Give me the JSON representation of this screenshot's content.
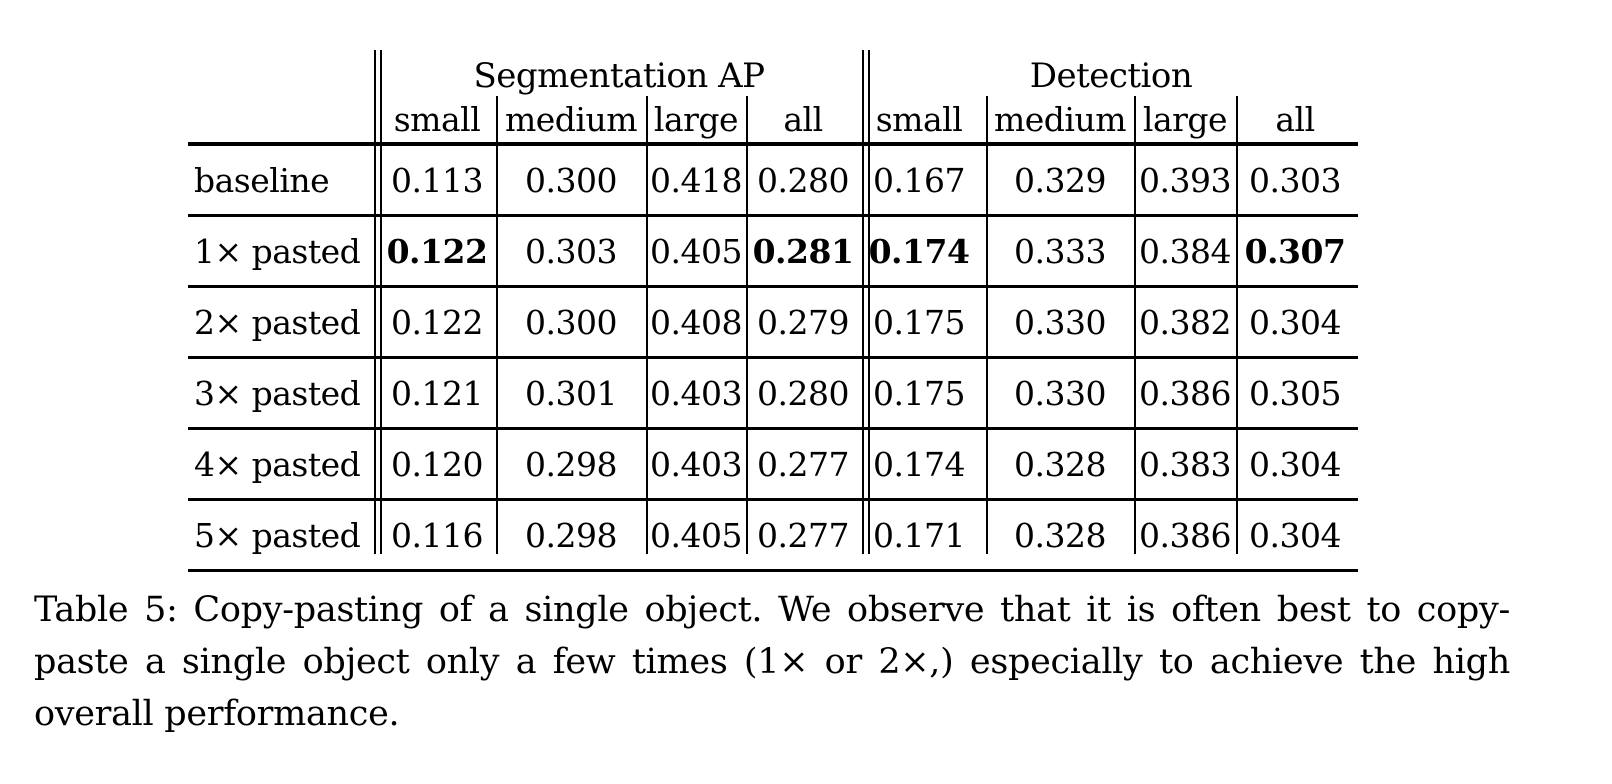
{
  "table": {
    "groups": [
      "Segmentation AP",
      "Detection"
    ],
    "subcolumns": [
      "small",
      "medium",
      "large",
      "all",
      "small",
      "medium",
      "large",
      "all"
    ],
    "rows": [
      {
        "label": "baseline",
        "values": [
          "0.113",
          "0.300",
          "0.418",
          "0.280",
          "0.167",
          "0.329",
          "0.393",
          "0.303"
        ],
        "bold": []
      },
      {
        "label": "1× pasted",
        "values": [
          "0.122",
          "0.303",
          "0.405",
          "0.281",
          "0.174",
          "0.333",
          "0.384",
          "0.307"
        ],
        "bold": [
          0,
          3,
          4,
          7
        ]
      },
      {
        "label": "2× pasted",
        "values": [
          "0.122",
          "0.300",
          "0.408",
          "0.279",
          "0.175",
          "0.330",
          "0.382",
          "0.304"
        ],
        "bold": []
      },
      {
        "label": "3× pasted",
        "values": [
          "0.121",
          "0.301",
          "0.403",
          "0.280",
          "0.175",
          "0.330",
          "0.386",
          "0.305"
        ],
        "bold": []
      },
      {
        "label": "4× pasted",
        "values": [
          "0.120",
          "0.298",
          "0.403",
          "0.277",
          "0.174",
          "0.328",
          "0.383",
          "0.304"
        ],
        "bold": []
      },
      {
        "label": "5× pasted",
        "values": [
          "0.116",
          "0.298",
          "0.405",
          "0.277",
          "0.171",
          "0.328",
          "0.386",
          "0.304"
        ],
        "bold": []
      }
    ]
  },
  "caption": "Table 5: Copy-pasting of a single object. We observe that it is often best to copy-paste a single object only a few times (1× or 2×,) especially to achieve the high overall performance."
}
